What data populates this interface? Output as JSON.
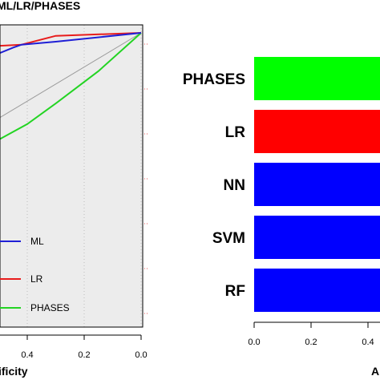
{
  "chart_data": [
    {
      "type": "line",
      "title": "ML/LR/PHASES",
      "xlabel": "ificity",
      "ylabel": "",
      "x_axis_reversed": true,
      "xlim": [
        1.0,
        0.0
      ],
      "ylim": [
        0.0,
        1.0
      ],
      "x_ticks": [
        "0.4",
        "0.2",
        "0.0"
      ],
      "grid": true,
      "legend_position": "bottom-left",
      "series": [
        {
          "name": "ML",
          "color": "#1f1fd6",
          "points": [
            [
              1.0,
              0.86
            ],
            [
              0.6,
              0.91
            ],
            [
              0.5,
              0.93
            ],
            [
              0.45,
              0.95
            ],
            [
              0.42,
              0.96
            ],
            [
              0.3,
              0.97
            ],
            [
              0.0,
              1.0
            ]
          ]
        },
        {
          "name": "LR",
          "color": "#e81c1c",
          "points": [
            [
              1.0,
              0.93
            ],
            [
              0.42,
              0.96
            ],
            [
              0.3,
              0.99
            ],
            [
              0.0,
              1.0
            ]
          ]
        },
        {
          "name": "PHASES",
          "color": "#23d423",
          "points": [
            [
              1.0,
              0.34
            ],
            [
              0.57,
              0.6
            ],
            [
              0.4,
              0.69
            ],
            [
              0.3,
              0.76
            ],
            [
              0.15,
              0.87
            ],
            [
              0.0,
              1.0
            ]
          ]
        }
      ]
    },
    {
      "type": "bar",
      "orientation": "horizontal",
      "categories": [
        "PHASES",
        "LR",
        "NN",
        "SVM",
        "RF"
      ],
      "values": [
        0.95,
        0.95,
        0.95,
        0.95,
        0.95
      ],
      "colors": [
        "#00ff00",
        "#ff0000",
        "#0000ff",
        "#0000ff",
        "#0000ff"
      ],
      "x_ticks": [
        "0.0",
        "0.2",
        "0.4"
      ],
      "xlim": [
        0.0,
        0.6
      ],
      "xlabel": "A"
    }
  ]
}
